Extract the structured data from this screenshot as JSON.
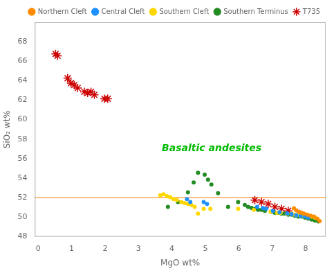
{
  "chart_data": {
    "type": "scatter",
    "xlabel": "MgO wt%",
    "ylabel": "SiO₂ wt%",
    "xlim": [
      -0.1,
      8.6
    ],
    "ylim": [
      48,
      70
    ],
    "xticks": [
      0,
      1,
      2,
      3,
      4,
      5,
      6,
      7,
      8
    ],
    "yticks": [
      48,
      50,
      52,
      54,
      56,
      58,
      60,
      62,
      64,
      66,
      68
    ],
    "grid": false,
    "legend": "upper right",
    "hlines": [
      {
        "value": 52.0,
        "color": "#FFA855"
      }
    ],
    "annotations": [
      {
        "text": "Basaltic andesites",
        "x": 3.7,
        "y": 56.8,
        "color": "#00BB00"
      }
    ],
    "series": [
      {
        "name": "Northern Cleft",
        "color": "#FF8C00",
        "marker": "circle",
        "x": [
          7.65,
          7.72,
          7.8,
          7.88,
          7.95,
          8.05,
          8.15,
          8.25,
          8.35,
          8.42
        ],
        "values": [
          50.9,
          50.7,
          50.55,
          50.45,
          50.35,
          50.25,
          50.15,
          50.05,
          49.85,
          49.6
        ]
      },
      {
        "name": "Central Cleft",
        "color": "#1E90FF",
        "marker": "circle",
        "x": [
          4.45,
          4.55,
          4.95,
          5.05,
          6.55,
          6.72,
          6.82,
          7.02,
          7.22,
          7.45,
          7.58,
          7.72,
          7.85,
          7.98,
          8.08
        ],
        "values": [
          51.85,
          51.55,
          51.55,
          51.35,
          51.05,
          50.95,
          50.85,
          50.65,
          50.5,
          50.4,
          50.3,
          50.2,
          50.1,
          50.05,
          49.95
        ]
      },
      {
        "name": "Southern Cleft",
        "color": "#FFD700",
        "marker": "circle",
        "x": [
          3.65,
          3.75,
          3.85,
          3.95,
          4.05,
          4.15,
          4.28,
          4.38,
          4.48,
          4.58,
          4.68,
          4.78,
          4.95,
          5.15,
          5.98,
          6.45,
          6.95,
          7.15,
          7.25,
          7.45,
          7.58,
          7.68,
          7.78,
          7.88,
          7.98,
          8.08,
          8.18,
          8.28
        ],
        "values": [
          52.25,
          52.35,
          52.15,
          52.05,
          51.85,
          51.75,
          51.55,
          51.45,
          51.35,
          51.25,
          51.05,
          50.35,
          50.85,
          50.85,
          50.85,
          50.75,
          50.55,
          50.45,
          50.45,
          50.35,
          50.35,
          50.25,
          50.25,
          50.15,
          50.15,
          50.05,
          50.05,
          49.95
        ]
      },
      {
        "name": "Southern Terminus",
        "color": "#228B22",
        "marker": "circle",
        "x": [
          3.88,
          4.18,
          4.48,
          4.65,
          4.78,
          4.98,
          5.08,
          5.18,
          5.38,
          5.68,
          5.98,
          6.18,
          6.28,
          6.38,
          6.48,
          6.58,
          6.68,
          6.78,
          6.98,
          7.08,
          7.18,
          7.28,
          7.38,
          7.48,
          7.58,
          7.68,
          7.78,
          7.88,
          7.98,
          8.08,
          8.18,
          8.28,
          8.38
        ],
        "values": [
          51.05,
          51.55,
          52.55,
          53.55,
          54.55,
          54.35,
          53.85,
          53.35,
          52.45,
          51.05,
          51.55,
          51.25,
          51.05,
          50.95,
          50.85,
          50.75,
          50.75,
          50.65,
          50.55,
          50.45,
          50.45,
          50.35,
          50.35,
          50.25,
          50.25,
          50.15,
          50.05,
          50.05,
          49.95,
          49.85,
          49.75,
          49.65,
          49.55
        ]
      },
      {
        "name": "T735",
        "color": "#CC0000",
        "marker": "star",
        "x": [
          0.52,
          0.58,
          0.88,
          0.98,
          1.08,
          1.18,
          1.38,
          1.48,
          1.58,
          1.68,
          1.98,
          2.08,
          6.48,
          6.68,
          6.88,
          7.08,
          7.28,
          7.48
        ],
        "values": [
          66.75,
          66.55,
          64.25,
          63.75,
          63.55,
          63.25,
          62.85,
          62.75,
          62.85,
          62.55,
          62.15,
          62.15,
          51.75,
          51.55,
          51.35,
          51.05,
          50.85,
          50.65
        ]
      }
    ]
  }
}
